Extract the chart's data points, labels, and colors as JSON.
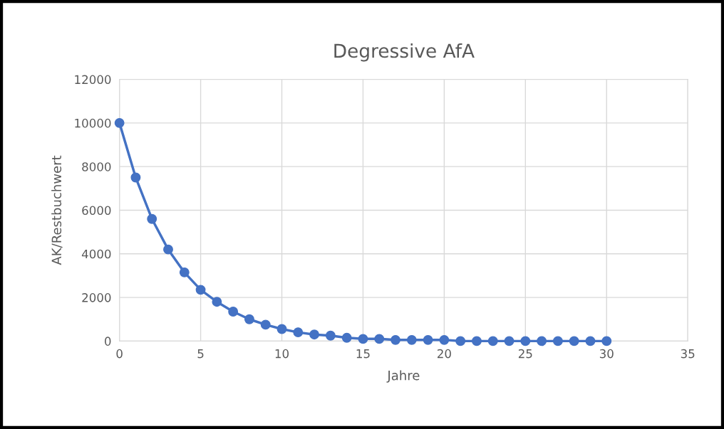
{
  "chart_data": {
    "type": "line",
    "title": "Degressive AfA",
    "xlabel": "Jahre",
    "ylabel": "AK/Restbuchwert",
    "x": [
      0,
      1,
      2,
      3,
      4,
      5,
      6,
      7,
      8,
      9,
      10,
      11,
      12,
      13,
      14,
      15,
      16,
      17,
      18,
      19,
      20,
      21,
      22,
      23,
      24,
      25,
      26,
      27,
      28,
      29,
      30
    ],
    "series": [
      {
        "color": "#4472c4",
        "values": [
          10000,
          7500,
          5600,
          4200,
          3150,
          2350,
          1800,
          1350,
          1000,
          750,
          550,
          400,
          300,
          250,
          150,
          100,
          100,
          50,
          50,
          50,
          50,
          0,
          0,
          0,
          0,
          0,
          0,
          0,
          0,
          0,
          0
        ]
      }
    ],
    "xlim": [
      0,
      35
    ],
    "xticks": [
      0,
      5,
      10,
      15,
      20,
      25,
      30,
      35
    ],
    "ylim": [
      0,
      12000
    ],
    "yticks": [
      0,
      2000,
      4000,
      6000,
      8000,
      10000,
      12000
    ],
    "grid": true,
    "marker": "circle",
    "line_style": "solid"
  }
}
